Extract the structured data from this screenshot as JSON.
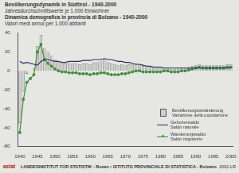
{
  "chart_data": {
    "type": "bar",
    "title": [
      "Bevölkerungsdynamik in Südtirol - 1940-2000",
      "Dinamica demografica in provincia di Bolzano - 1940-2000"
    ],
    "subtitle": [
      "Jahresdurchschnittswerte je 1.000 Einwohner",
      "Valori medi annui per 1.000 abitanti"
    ],
    "annotations": [
      "astat",
      "LANDESINSTITUT FÜR STATISTIK - Bozen ▪ ISTITUTO PROVINCIALE DI STATISTICA - Bolzano",
      "2002-LR"
    ],
    "categories": [
      "1940",
      null,
      null,
      null,
      null,
      "1945",
      null,
      null,
      null,
      null,
      "1950",
      null,
      null,
      null,
      null,
      "1955",
      null,
      null,
      null,
      null,
      "1960",
      null,
      null,
      null,
      null,
      "1965",
      null,
      null,
      null,
      null,
      "1970",
      null,
      null,
      null,
      null,
      "1975",
      null,
      null,
      null,
      null,
      "1980",
      null,
      null,
      null,
      null,
      "1985",
      null,
      null,
      null,
      null,
      "1990",
      null,
      null,
      null,
      null,
      "1995",
      null,
      null,
      null,
      null,
      "2000"
    ],
    "series": [
      {
        "name": "Bevölkerungsveränderung\nVariazione della popolazione",
        "type": "bar",
        "color": "#cfcfcc",
        "values": [
          -55,
          -22,
          -3,
          0,
          3,
          26,
          38,
          24,
          20,
          16,
          12,
          10,
          8,
          8,
          8,
          8,
          8,
          7,
          8,
          8,
          7,
          9,
          9,
          10,
          11,
          9,
          8,
          7,
          6,
          7,
          6,
          7,
          7,
          7,
          7,
          5,
          4,
          4,
          3,
          3,
          3,
          3,
          3,
          2,
          2,
          2,
          3,
          3,
          4,
          5,
          6,
          7,
          6,
          6,
          6,
          6,
          6,
          6,
          6,
          7,
          7
        ]
      },
      {
        "name": "Geburtensaldo\nSaldo naturale",
        "type": "line",
        "color": "#2e2e5e",
        "line_style": "solid",
        "values": [
          10,
          8,
          9,
          8,
          7,
          6,
          10,
          12,
          12,
          11,
          10,
          10,
          9,
          9,
          10,
          10,
          10,
          10,
          11,
          11,
          11,
          12,
          12,
          12,
          13,
          12,
          12,
          11,
          10,
          10,
          9,
          9,
          8,
          7,
          7,
          6,
          5,
          5,
          4,
          4,
          4,
          3,
          3,
          3,
          3,
          3,
          3,
          3,
          3,
          3,
          3,
          3,
          3,
          3,
          3,
          3,
          3,
          3,
          3,
          3,
          3
        ]
      },
      {
        "name": "Wanderungssaldo\nSaldo migratorio",
        "type": "line",
        "color": "#3f8f3f",
        "line_style": "solid",
        "marker": "circle",
        "values": [
          -65,
          -30,
          -12,
          -8,
          -4,
          20,
          28,
          12,
          8,
          5,
          2,
          0,
          -1,
          -1,
          -2,
          -2,
          -2,
          -3,
          -3,
          -3,
          -4,
          -3,
          -3,
          -2,
          -2,
          -3,
          -4,
          -4,
          -4,
          -3,
          -3,
          -2,
          -1,
          0,
          0,
          -1,
          -1,
          -1,
          -1,
          -1,
          -1,
          0,
          0,
          -1,
          -1,
          -1,
          0,
          0,
          1,
          2,
          3,
          4,
          3,
          3,
          3,
          3,
          3,
          3,
          3,
          4,
          4
        ]
      }
    ],
    "ylim": [
      -80,
      40
    ],
    "yticks": [
      -80,
      -60,
      -40,
      -20,
      0,
      20,
      40
    ],
    "grid": false,
    "legend": "lower right"
  }
}
